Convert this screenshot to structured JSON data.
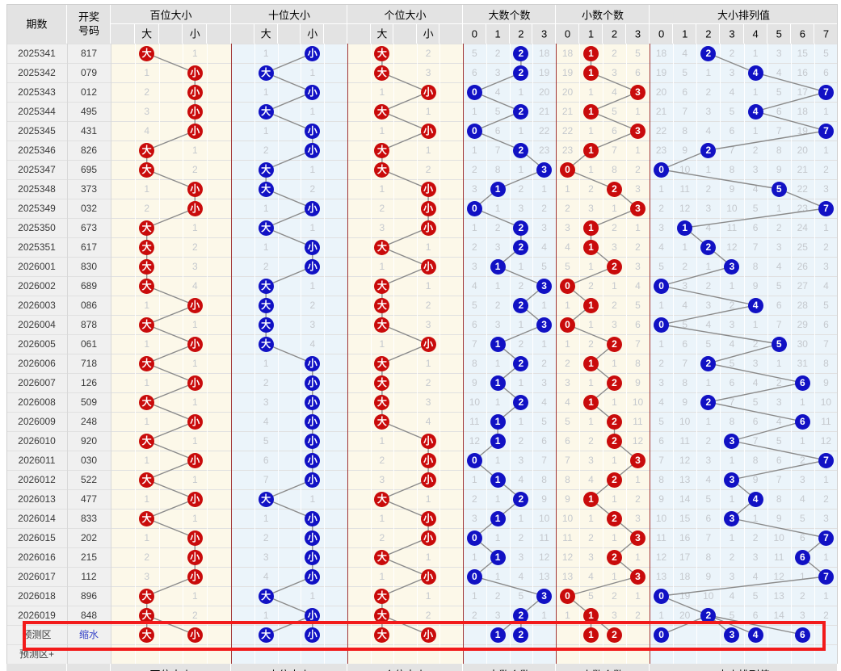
{
  "chart_data": {
    "type": "table",
    "header": {
      "period": "期数",
      "number_line1": "开奖",
      "number_line2": "号码",
      "groups": [
        {
          "key": "bai",
          "title": "百位大小",
          "sub_labels": [
            "",
            "大",
            "",
            "小",
            ""
          ],
          "circle": "red",
          "bg": "cream"
        },
        {
          "key": "shi",
          "title": "十位大小",
          "sub_labels": [
            "",
            "大",
            "",
            "小",
            ""
          ],
          "circle": "blue",
          "bg": "blue"
        },
        {
          "key": "ge",
          "title": "个位大小",
          "sub_labels": [
            "",
            "大",
            "",
            "小",
            ""
          ],
          "circle": "red",
          "bg": "cream"
        },
        {
          "key": "da",
          "title": "大数个数",
          "sub_labels": [
            "0",
            "1",
            "2",
            "3"
          ],
          "circle": "blue",
          "bg": "blue"
        },
        {
          "key": "xiao",
          "title": "小数个数",
          "sub_labels": [
            "0",
            "1",
            "2",
            "3"
          ],
          "circle": "red",
          "bg": "cream"
        },
        {
          "key": "pl",
          "title": "大小排列值",
          "sub_labels": [
            "0",
            "1",
            "2",
            "3",
            "4",
            "5",
            "6",
            "7"
          ],
          "circle": "blue",
          "bg": "blue"
        }
      ]
    },
    "rows": [
      {
        "p": "2025341",
        "n": "817",
        "bai": [
          "●大",
          "1"
        ],
        "shi": [
          "1",
          "●小"
        ],
        "ge": [
          "●大",
          "2"
        ],
        "da": [
          "5",
          "2",
          "●2",
          "18"
        ],
        "xiao": [
          "18",
          "●1",
          "2",
          "5"
        ],
        "pl": [
          "18",
          "4",
          "●2",
          "2",
          "1",
          "3",
          "15",
          "5"
        ]
      },
      {
        "p": "2025342",
        "n": "079",
        "bai": [
          "1",
          "●小"
        ],
        "shi": [
          "●大",
          "1"
        ],
        "ge": [
          "●大",
          "3"
        ],
        "da": [
          "6",
          "3",
          "●2",
          "19"
        ],
        "xiao": [
          "19",
          "●1",
          "3",
          "6"
        ],
        "pl": [
          "19",
          "5",
          "1",
          "3",
          "●4",
          "4",
          "16",
          "6"
        ]
      },
      {
        "p": "2025343",
        "n": "012",
        "bai": [
          "2",
          "●小"
        ],
        "shi": [
          "1",
          "●小"
        ],
        "ge": [
          "1",
          "●小"
        ],
        "da": [
          "●0",
          "4",
          "1",
          "20"
        ],
        "xiao": [
          "20",
          "1",
          "4",
          "●3"
        ],
        "pl": [
          "20",
          "6",
          "2",
          "4",
          "1",
          "5",
          "17",
          "●7"
        ]
      },
      {
        "p": "2025344",
        "n": "495",
        "bai": [
          "3",
          "●小"
        ],
        "shi": [
          "●大",
          "1"
        ],
        "ge": [
          "●大",
          "1"
        ],
        "da": [
          "1",
          "5",
          "●2",
          "21"
        ],
        "xiao": [
          "21",
          "●1",
          "5",
          "1"
        ],
        "pl": [
          "21",
          "7",
          "3",
          "5",
          "●4",
          "6",
          "18",
          "1"
        ]
      },
      {
        "p": "2025345",
        "n": "431",
        "bai": [
          "4",
          "●小"
        ],
        "shi": [
          "1",
          "●小"
        ],
        "ge": [
          "1",
          "●小"
        ],
        "da": [
          "●0",
          "6",
          "1",
          "22"
        ],
        "xiao": [
          "22",
          "1",
          "6",
          "●3"
        ],
        "pl": [
          "22",
          "8",
          "4",
          "6",
          "1",
          "7",
          "19",
          "●7"
        ]
      },
      {
        "p": "2025346",
        "n": "826",
        "bai": [
          "●大",
          "1"
        ],
        "shi": [
          "2",
          "●小"
        ],
        "ge": [
          "●大",
          "1"
        ],
        "da": [
          "1",
          "7",
          "●2",
          "23"
        ],
        "xiao": [
          "23",
          "●1",
          "7",
          "1"
        ],
        "pl": [
          "23",
          "9",
          "●2",
          "7",
          "2",
          "8",
          "20",
          "1"
        ]
      },
      {
        "p": "2025347",
        "n": "695",
        "bai": [
          "●大",
          "2"
        ],
        "shi": [
          "●大",
          "1"
        ],
        "ge": [
          "●大",
          "2"
        ],
        "da": [
          "2",
          "8",
          "1",
          "●3"
        ],
        "xiao": [
          "●0",
          "1",
          "8",
          "2"
        ],
        "pl": [
          "●0",
          "10",
          "1",
          "8",
          "3",
          "9",
          "21",
          "2"
        ]
      },
      {
        "p": "2025348",
        "n": "373",
        "bai": [
          "1",
          "●小"
        ],
        "shi": [
          "●大",
          "2"
        ],
        "ge": [
          "1",
          "●小"
        ],
        "da": [
          "3",
          "●1",
          "2",
          "1"
        ],
        "xiao": [
          "1",
          "2",
          "●2",
          "3"
        ],
        "pl": [
          "1",
          "11",
          "2",
          "9",
          "4",
          "●5",
          "22",
          "3"
        ]
      },
      {
        "p": "2025349",
        "n": "032",
        "bai": [
          "2",
          "●小"
        ],
        "shi": [
          "1",
          "●小"
        ],
        "ge": [
          "2",
          "●小"
        ],
        "da": [
          "●0",
          "1",
          "3",
          "2"
        ],
        "xiao": [
          "2",
          "3",
          "1",
          "●3"
        ],
        "pl": [
          "2",
          "12",
          "3",
          "10",
          "5",
          "1",
          "23",
          "●7"
        ]
      },
      {
        "p": "2025350",
        "n": "673",
        "bai": [
          "●大",
          "1"
        ],
        "shi": [
          "●大",
          "1"
        ],
        "ge": [
          "3",
          "●小"
        ],
        "da": [
          "1",
          "2",
          "●2",
          "3"
        ],
        "xiao": [
          "3",
          "●1",
          "2",
          "1"
        ],
        "pl": [
          "3",
          "●1",
          "4",
          "11",
          "6",
          "2",
          "24",
          "1"
        ]
      },
      {
        "p": "2025351",
        "n": "617",
        "bai": [
          "●大",
          "2"
        ],
        "shi": [
          "1",
          "●小"
        ],
        "ge": [
          "●大",
          "1"
        ],
        "da": [
          "2",
          "3",
          "●2",
          "4"
        ],
        "xiao": [
          "4",
          "●1",
          "3",
          "2"
        ],
        "pl": [
          "4",
          "1",
          "●2",
          "12",
          "7",
          "3",
          "25",
          "2"
        ]
      },
      {
        "p": "2026001",
        "n": "830",
        "bai": [
          "●大",
          "3"
        ],
        "shi": [
          "2",
          "●小"
        ],
        "ge": [
          "1",
          "●小"
        ],
        "da": [
          "3",
          "●1",
          "1",
          "5"
        ],
        "xiao": [
          "5",
          "1",
          "●2",
          "3"
        ],
        "pl": [
          "5",
          "2",
          "1",
          "●3",
          "8",
          "4",
          "26",
          "3"
        ]
      },
      {
        "p": "2026002",
        "n": "689",
        "bai": [
          "●大",
          "4"
        ],
        "shi": [
          "●大",
          "1"
        ],
        "ge": [
          "●大",
          "1"
        ],
        "da": [
          "4",
          "1",
          "2",
          "●3"
        ],
        "xiao": [
          "●0",
          "2",
          "1",
          "4"
        ],
        "pl": [
          "●0",
          "3",
          "2",
          "1",
          "9",
          "5",
          "27",
          "4"
        ]
      },
      {
        "p": "2026003",
        "n": "086",
        "bai": [
          "1",
          "●小"
        ],
        "shi": [
          "●大",
          "2"
        ],
        "ge": [
          "●大",
          "2"
        ],
        "da": [
          "5",
          "2",
          "●2",
          "1"
        ],
        "xiao": [
          "1",
          "●1",
          "2",
          "5"
        ],
        "pl": [
          "1",
          "4",
          "3",
          "2",
          "●4",
          "6",
          "28",
          "5"
        ]
      },
      {
        "p": "2026004",
        "n": "878",
        "bai": [
          "●大",
          "1"
        ],
        "shi": [
          "●大",
          "3"
        ],
        "ge": [
          "●大",
          "3"
        ],
        "da": [
          "6",
          "3",
          "1",
          "●3"
        ],
        "xiao": [
          "●0",
          "1",
          "3",
          "6"
        ],
        "pl": [
          "●0",
          "5",
          "4",
          "3",
          "1",
          "7",
          "29",
          "6"
        ]
      },
      {
        "p": "2026005",
        "n": "061",
        "bai": [
          "1",
          "●小"
        ],
        "shi": [
          "●大",
          "4"
        ],
        "ge": [
          "1",
          "●小"
        ],
        "da": [
          "7",
          "●1",
          "2",
          "1"
        ],
        "xiao": [
          "1",
          "2",
          "●2",
          "7"
        ],
        "pl": [
          "1",
          "6",
          "5",
          "4",
          "2",
          "●5",
          "30",
          "7"
        ]
      },
      {
        "p": "2026006",
        "n": "718",
        "bai": [
          "●大",
          "1"
        ],
        "shi": [
          "1",
          "●小"
        ],
        "ge": [
          "●大",
          "1"
        ],
        "da": [
          "8",
          "1",
          "●2",
          "2"
        ],
        "xiao": [
          "2",
          "●1",
          "1",
          "8"
        ],
        "pl": [
          "2",
          "7",
          "●2",
          "5",
          "3",
          "1",
          "31",
          "8"
        ]
      },
      {
        "p": "2026007",
        "n": "126",
        "bai": [
          "1",
          "●小"
        ],
        "shi": [
          "2",
          "●小"
        ],
        "ge": [
          "●大",
          "2"
        ],
        "da": [
          "9",
          "●1",
          "1",
          "3"
        ],
        "xiao": [
          "3",
          "1",
          "●2",
          "9"
        ],
        "pl": [
          "3",
          "8",
          "1",
          "6",
          "4",
          "2",
          "●6",
          "9"
        ]
      },
      {
        "p": "2026008",
        "n": "509",
        "bai": [
          "●大",
          "1"
        ],
        "shi": [
          "3",
          "●小"
        ],
        "ge": [
          "●大",
          "3"
        ],
        "da": [
          "10",
          "1",
          "●2",
          "4"
        ],
        "xiao": [
          "4",
          "●1",
          "1",
          "10"
        ],
        "pl": [
          "4",
          "9",
          "●2",
          "7",
          "5",
          "3",
          "1",
          "10"
        ]
      },
      {
        "p": "2026009",
        "n": "248",
        "bai": [
          "1",
          "●小"
        ],
        "shi": [
          "4",
          "●小"
        ],
        "ge": [
          "●大",
          "4"
        ],
        "da": [
          "11",
          "●1",
          "1",
          "5"
        ],
        "xiao": [
          "5",
          "1",
          "●2",
          "11"
        ],
        "pl": [
          "5",
          "10",
          "1",
          "8",
          "6",
          "4",
          "●6",
          "11"
        ]
      },
      {
        "p": "2026010",
        "n": "920",
        "bai": [
          "●大",
          "1"
        ],
        "shi": [
          "5",
          "●小"
        ],
        "ge": [
          "1",
          "●小"
        ],
        "da": [
          "12",
          "●1",
          "2",
          "6"
        ],
        "xiao": [
          "6",
          "2",
          "●2",
          "12"
        ],
        "pl": [
          "6",
          "11",
          "2",
          "●3",
          "7",
          "5",
          "1",
          "12"
        ]
      },
      {
        "p": "2026011",
        "n": "030",
        "bai": [
          "1",
          "●小"
        ],
        "shi": [
          "6",
          "●小"
        ],
        "ge": [
          "2",
          "●小"
        ],
        "da": [
          "●0",
          "1",
          "3",
          "7"
        ],
        "xiao": [
          "7",
          "3",
          "1",
          "●3"
        ],
        "pl": [
          "7",
          "12",
          "3",
          "1",
          "8",
          "6",
          "2",
          "●7"
        ]
      },
      {
        "p": "2026012",
        "n": "522",
        "bai": [
          "●大",
          "1"
        ],
        "shi": [
          "7",
          "●小"
        ],
        "ge": [
          "3",
          "●小"
        ],
        "da": [
          "1",
          "●1",
          "4",
          "8"
        ],
        "xiao": [
          "8",
          "4",
          "●2",
          "1"
        ],
        "pl": [
          "8",
          "13",
          "4",
          "●3",
          "9",
          "7",
          "3",
          "1"
        ]
      },
      {
        "p": "2026013",
        "n": "477",
        "bai": [
          "1",
          "●小"
        ],
        "shi": [
          "●大",
          "1"
        ],
        "ge": [
          "●大",
          "1"
        ],
        "da": [
          "2",
          "1",
          "●2",
          "9"
        ],
        "xiao": [
          "9",
          "●1",
          "1",
          "2"
        ],
        "pl": [
          "9",
          "14",
          "5",
          "1",
          "●4",
          "8",
          "4",
          "2"
        ]
      },
      {
        "p": "2026014",
        "n": "833",
        "bai": [
          "●大",
          "1"
        ],
        "shi": [
          "1",
          "●小"
        ],
        "ge": [
          "1",
          "●小"
        ],
        "da": [
          "3",
          "●1",
          "1",
          "10"
        ],
        "xiao": [
          "10",
          "1",
          "●2",
          "3"
        ],
        "pl": [
          "10",
          "15",
          "6",
          "●3",
          "1",
          "9",
          "5",
          "3"
        ]
      },
      {
        "p": "2026015",
        "n": "202",
        "bai": [
          "1",
          "●小"
        ],
        "shi": [
          "2",
          "●小"
        ],
        "ge": [
          "2",
          "●小"
        ],
        "da": [
          "●0",
          "1",
          "2",
          "11"
        ],
        "xiao": [
          "11",
          "2",
          "1",
          "●3"
        ],
        "pl": [
          "11",
          "16",
          "7",
          "1",
          "2",
          "10",
          "6",
          "●7"
        ]
      },
      {
        "p": "2026016",
        "n": "215",
        "bai": [
          "2",
          "●小"
        ],
        "shi": [
          "3",
          "●小"
        ],
        "ge": [
          "●大",
          "1"
        ],
        "da": [
          "1",
          "●1",
          "3",
          "12"
        ],
        "xiao": [
          "12",
          "3",
          "●2",
          "1"
        ],
        "pl": [
          "12",
          "17",
          "8",
          "2",
          "3",
          "11",
          "●6",
          "1"
        ]
      },
      {
        "p": "2026017",
        "n": "112",
        "bai": [
          "3",
          "●小"
        ],
        "shi": [
          "4",
          "●小"
        ],
        "ge": [
          "1",
          "●小"
        ],
        "da": [
          "●0",
          "1",
          "4",
          "13"
        ],
        "xiao": [
          "13",
          "4",
          "1",
          "●3"
        ],
        "pl": [
          "13",
          "18",
          "9",
          "3",
          "4",
          "12",
          "1",
          "●7"
        ]
      },
      {
        "p": "2026018",
        "n": "896",
        "bai": [
          "●大",
          "1"
        ],
        "shi": [
          "●大",
          "1"
        ],
        "ge": [
          "●大",
          "1"
        ],
        "da": [
          "1",
          "2",
          "5",
          "●3"
        ],
        "xiao": [
          "●0",
          "5",
          "2",
          "1"
        ],
        "pl": [
          "●0",
          "19",
          "10",
          "4",
          "5",
          "13",
          "2",
          "1"
        ]
      },
      {
        "p": "2026019",
        "n": "848",
        "bai": [
          "●大",
          "2"
        ],
        "shi": [
          "1",
          "●小"
        ],
        "ge": [
          "●大",
          "2"
        ],
        "da": [
          "2",
          "3",
          "●2",
          "1"
        ],
        "xiao": [
          "1",
          "●1",
          "3",
          "2"
        ],
        "pl": [
          "1",
          "20",
          "●2",
          "5",
          "6",
          "14",
          "3",
          "2"
        ]
      }
    ],
    "forecast": {
      "p": "预测区",
      "n": "缩水",
      "bai": [
        "●大",
        "●小"
      ],
      "shi": [
        "●大",
        "●小"
      ],
      "ge": [
        "●大",
        "●小"
      ],
      "da": [
        "",
        "●1",
        "●2",
        ""
      ],
      "xiao": [
        "",
        "●1",
        "●2",
        ""
      ],
      "pl": [
        "●0",
        "",
        "",
        "●3",
        "●4",
        "",
        "●6",
        ""
      ]
    },
    "forecast_plus_label": "预测区+"
  },
  "colors": {
    "circle_red": "#C90B0B",
    "circle_blue": "#1111C4",
    "bg_cream": "#FCF8E9",
    "bg_blue": "#EBF4FA",
    "header_bg": "#E3E3E3",
    "label_bg": "#F0F0F0",
    "miss_text": "#C5C9CE",
    "separator_dark_red": "#A13535",
    "trend_line": "#8A8A8A",
    "highlight_box": "#F21A1A",
    "link_blue": "#3946C8"
  }
}
